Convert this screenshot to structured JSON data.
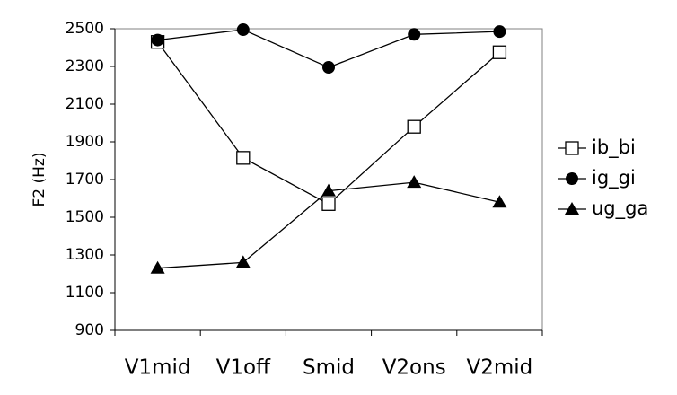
{
  "chart_data": {
    "type": "line",
    "title": "",
    "xlabel": "",
    "ylabel": "F2 (Hz)",
    "categories": [
      "V1mid",
      "V1off",
      "Smid",
      "V2ons",
      "V2mid"
    ],
    "ylim": [
      900,
      2500
    ],
    "yticks": [
      900,
      1100,
      1300,
      1500,
      1700,
      1900,
      2100,
      2300,
      2500
    ],
    "grid": false,
    "legend_position": "right",
    "series": [
      {
        "name": "ib_bi",
        "marker": "open-square",
        "values": [
          2430,
          1815,
          1570,
          1980,
          2375
        ]
      },
      {
        "name": "ig_gi",
        "marker": "filled-circle",
        "values": [
          2440,
          2495,
          2295,
          2470,
          2485
        ]
      },
      {
        "name": "ug_ga",
        "marker": "filled-triangle",
        "values": [
          1230,
          1260,
          1640,
          1685,
          1580
        ]
      }
    ]
  }
}
